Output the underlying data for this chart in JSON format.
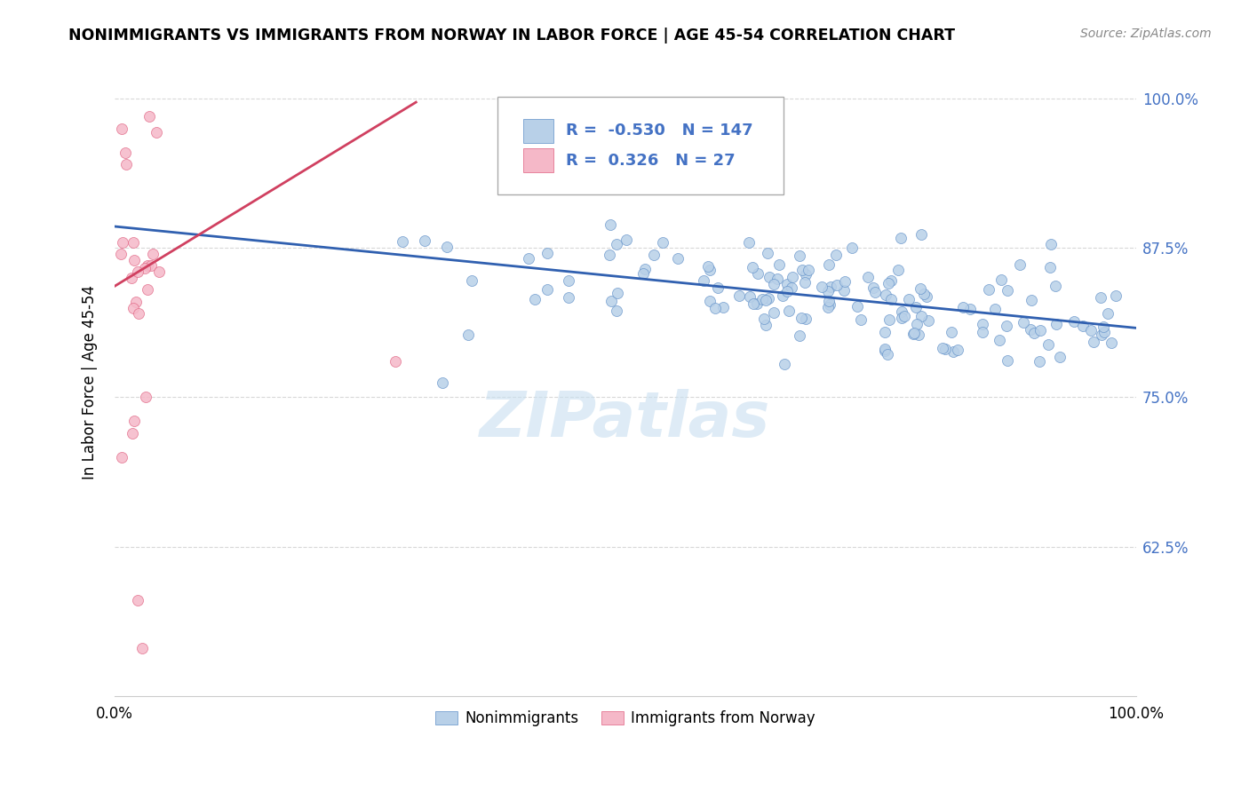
{
  "title": "NONIMMIGRANTS VS IMMIGRANTS FROM NORWAY IN LABOR FORCE | AGE 45-54 CORRELATION CHART",
  "source": "Source: ZipAtlas.com",
  "ylabel": "In Labor Force | Age 45-54",
  "blue_R": -0.53,
  "blue_N": 147,
  "pink_R": 0.326,
  "pink_N": 27,
  "blue_color": "#b8d0e8",
  "pink_color": "#f5b8c8",
  "blue_edge_color": "#6090c8",
  "pink_edge_color": "#e06080",
  "blue_line_color": "#3060b0",
  "pink_line_color": "#d04060",
  "text_color_blue": "#4472c4",
  "background_color": "#ffffff",
  "grid_color": "#d8d8d8",
  "watermark_color": "#c8dff0",
  "xlim": [
    0.0,
    1.0
  ],
  "ylim": [
    0.5,
    1.025
  ],
  "y_ticks": [
    0.625,
    0.75,
    0.875,
    1.0
  ],
  "y_tick_labels": [
    "62.5%",
    "75.0%",
    "87.5%",
    "100.0%"
  ],
  "blue_line_x0": 0.0,
  "blue_line_x1": 1.0,
  "blue_line_y0": 0.893,
  "blue_line_y1": 0.808,
  "pink_line_x0": 0.0,
  "pink_line_x1": 0.295,
  "pink_line_y0": 0.843,
  "pink_line_y1": 0.997
}
